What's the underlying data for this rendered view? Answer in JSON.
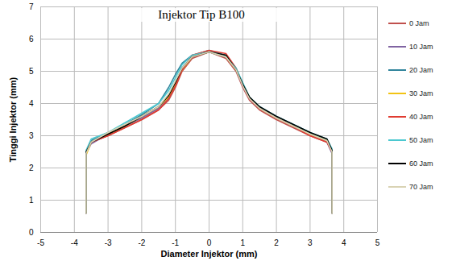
{
  "chart_data": {
    "type": "line",
    "title": "Injektor Tip B100",
    "xlabel": "Diameter Injektor (mm)",
    "ylabel": "Tinggi Injektor (mm)",
    "x": [
      -3.65,
      -3.65,
      -3.5,
      -3,
      -2.5,
      -2,
      -1.5,
      -1.2,
      -1.0,
      -0.8,
      -0.5,
      0,
      0.5,
      0.8,
      1.0,
      1.2,
      1.5,
      2,
      2.5,
      3,
      3.5,
      3.65,
      3.65
    ],
    "series": [
      {
        "name": "0 Jam",
        "color": "#c0504d",
        "values": [
          0.6,
          2.5,
          2.8,
          3.0,
          3.25,
          3.5,
          3.8,
          4.1,
          4.5,
          5.0,
          5.4,
          5.6,
          5.4,
          5.0,
          4.5,
          4.1,
          3.8,
          3.5,
          3.25,
          3.0,
          2.8,
          2.5,
          0.6
        ]
      },
      {
        "name": "10 Jam",
        "color": "#8064a2",
        "values": [
          0.6,
          2.45,
          2.75,
          3.05,
          3.3,
          3.55,
          3.85,
          4.15,
          4.6,
          5.1,
          5.45,
          5.6,
          5.45,
          5.05,
          4.55,
          4.15,
          3.85,
          3.55,
          3.3,
          3.05,
          2.8,
          2.45,
          0.6
        ]
      },
      {
        "name": "20 Jam",
        "color": "#31859c",
        "values": [
          0.6,
          2.5,
          2.85,
          3.1,
          3.35,
          3.65,
          4.0,
          4.5,
          4.9,
          5.25,
          5.5,
          5.65,
          5.5,
          5.1,
          4.6,
          4.2,
          3.9,
          3.6,
          3.35,
          3.1,
          2.85,
          2.5,
          0.6
        ]
      },
      {
        "name": "30 Jam",
        "color": "#f2c314",
        "values": [
          0.6,
          2.4,
          2.8,
          3.05,
          3.3,
          3.6,
          3.9,
          4.2,
          4.6,
          5.05,
          5.45,
          5.6,
          5.45,
          5.05,
          4.6,
          4.2,
          3.85,
          3.55,
          3.3,
          3.05,
          2.85,
          2.55,
          0.6
        ]
      },
      {
        "name": "40 Jam",
        "color": "#e03c31",
        "values": [
          0.6,
          2.5,
          2.8,
          3.0,
          3.25,
          3.5,
          3.8,
          4.15,
          4.55,
          5.05,
          5.5,
          5.65,
          5.55,
          5.1,
          4.6,
          4.15,
          3.85,
          3.55,
          3.3,
          3.0,
          2.8,
          2.5,
          0.6
        ]
      },
      {
        "name": "50 Jam",
        "color": "#4bc8d0",
        "values": [
          0.6,
          2.55,
          2.9,
          3.1,
          3.4,
          3.7,
          4.0,
          4.4,
          4.8,
          5.2,
          5.5,
          5.6,
          5.45,
          5.1,
          4.65,
          4.2,
          3.9,
          3.6,
          3.35,
          3.1,
          2.9,
          2.6,
          0.6
        ]
      },
      {
        "name": "60 Jam",
        "color": "#000000",
        "values": [
          0.6,
          2.5,
          2.8,
          3.05,
          3.3,
          3.6,
          3.9,
          4.25,
          4.65,
          5.1,
          5.45,
          5.6,
          5.5,
          5.05,
          4.6,
          4.2,
          3.9,
          3.6,
          3.35,
          3.1,
          2.9,
          2.55,
          0.6
        ]
      },
      {
        "name": "70 Jam",
        "color": "#d9d3b4",
        "values": [
          0.6,
          2.45,
          2.8,
          3.1,
          3.35,
          3.6,
          3.9,
          4.3,
          4.7,
          5.1,
          5.45,
          5.6,
          5.45,
          5.05,
          4.55,
          4.15,
          3.85,
          3.55,
          3.3,
          3.05,
          2.85,
          2.5,
          0.6
        ]
      }
    ],
    "xlim": [
      -5,
      5
    ],
    "ylim": [
      0,
      7
    ],
    "xticks": [
      -5,
      -4,
      -3,
      -2,
      -1,
      0,
      1,
      2,
      3,
      4,
      5
    ],
    "yticks": [
      0,
      1,
      2,
      3,
      4,
      5,
      6,
      7
    ],
    "grid": true,
    "legend": "right"
  }
}
